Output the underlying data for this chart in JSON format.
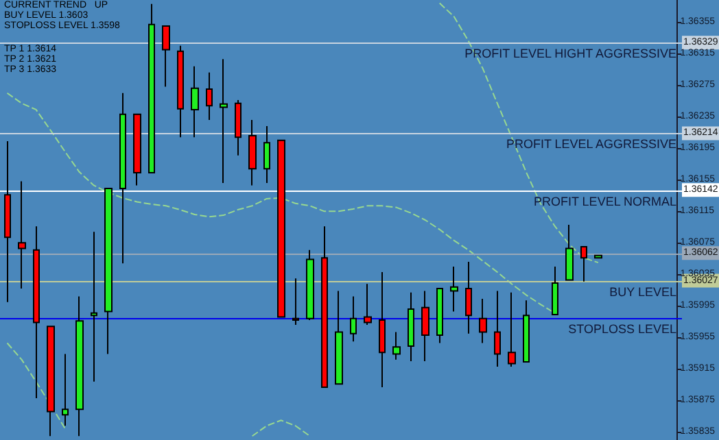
{
  "chart_data": {
    "type": "candlestick",
    "categories": [
      null,
      null,
      null,
      null,
      null,
      null,
      null,
      null,
      null,
      null,
      null,
      null,
      null,
      null,
      null,
      null,
      null,
      null,
      null,
      null,
      null,
      null,
      null,
      null,
      null,
      null,
      null,
      null,
      null,
      null,
      null,
      null,
      null,
      null,
      null,
      null,
      null,
      null,
      null,
      null,
      null,
      null,
      null,
      null,
      null,
      null,
      null
    ],
    "ohlc": [
      [
        1.36136,
        1.36204,
        1.36,
        1.36082
      ],
      [
        1.36075,
        1.36153,
        1.36017,
        1.36068
      ],
      [
        1.36066,
        1.36096,
        1.35878,
        1.35974
      ],
      [
        1.35969,
        1.35969,
        1.3583,
        1.35861
      ],
      [
        1.35857,
        1.35934,
        1.35843,
        1.35864
      ],
      [
        1.35864,
        1.36007,
        1.3583,
        1.35976
      ],
      [
        1.35983,
        1.36089,
        1.35899,
        1.35986
      ],
      [
        1.35988,
        1.36144,
        1.35934,
        1.36144
      ],
      [
        1.36144,
        1.36265,
        1.36049,
        1.36238
      ],
      [
        1.36238,
        1.36238,
        1.36148,
        1.36164
      ],
      [
        1.36164,
        1.36378,
        1.36164,
        1.36352
      ],
      [
        1.3635,
        1.3635,
        1.36273,
        1.3632
      ],
      [
        1.36318,
        1.36325,
        1.36209,
        1.36245
      ],
      [
        1.36244,
        1.36299,
        1.36209,
        1.36271
      ],
      [
        1.3627,
        1.36291,
        1.36231,
        1.36249
      ],
      [
        1.36247,
        1.36308,
        1.36151,
        1.36251
      ],
      [
        1.36252,
        1.36256,
        1.36186,
        1.36209
      ],
      [
        1.36211,
        1.36231,
        1.36148,
        1.36169
      ],
      [
        1.36169,
        1.36223,
        1.36151,
        1.36202
      ],
      [
        1.36205,
        1.36205,
        1.35981,
        1.35981
      ],
      [
        1.35979,
        1.3603,
        1.35971,
        1.35977
      ],
      [
        1.35979,
        1.36066,
        1.35977,
        1.36054
      ],
      [
        1.36056,
        1.36096,
        1.35892,
        1.35892
      ],
      [
        1.35896,
        1.36014,
        1.35896,
        1.35962
      ],
      [
        1.3596,
        1.36007,
        1.3595,
        1.35979
      ],
      [
        1.35981,
        1.36023,
        1.35971,
        1.35974
      ],
      [
        1.35977,
        1.36038,
        1.35892,
        1.35936
      ],
      [
        1.35934,
        1.35962,
        1.35927,
        1.35943
      ],
      [
        1.35944,
        1.36012,
        1.35925,
        1.35991
      ],
      [
        1.35993,
        1.36014,
        1.35925,
        1.35958
      ],
      [
        1.35958,
        1.36017,
        1.35948,
        1.36017
      ],
      [
        1.36014,
        1.36045,
        1.35988,
        1.36019
      ],
      [
        1.36017,
        1.36051,
        1.3596,
        1.35983
      ],
      [
        1.35979,
        1.36004,
        1.35948,
        1.35962
      ],
      [
        1.35962,
        1.36014,
        1.35918,
        1.35934
      ],
      [
        1.35936,
        1.36012,
        1.35918,
        1.35922
      ],
      [
        1.35924,
        1.36002,
        1.35924,
        1.35983
      ],
      null,
      [
        1.35984,
        1.36045,
        1.35984,
        1.36024
      ],
      [
        1.36028,
        1.36098,
        1.36028,
        1.36068
      ],
      [
        1.3607,
        1.3607,
        1.36026,
        1.36056
      ],
      [
        1.36056,
        1.36059,
        1.36056,
        1.36059
      ],
      null,
      null,
      null,
      null,
      null
    ],
    "colors": [
      "#ff0000",
      "#ff0000",
      "#ff0000",
      "#ff0000",
      "#22ee22",
      "#22ee22",
      "#22ee22",
      "#22ee22",
      "#22ee22",
      "#ff0000",
      "#22ee22",
      "#ff0000",
      "#ff0000",
      "#22ee22",
      "#ff0000",
      "#22ee22",
      "#ff0000",
      "#ff0000",
      "#22ee22",
      "#ff0000",
      "#ff0000",
      "#22ee22",
      "#ff0000",
      "#22ee22",
      "#22ee22",
      "#ff0000",
      "#ff0000",
      "#22ee22",
      "#22ee22",
      "#ff0000",
      "#22ee22",
      "#22ee22",
      "#ff0000",
      "#ff0000",
      "#ff0000",
      "#ff0000",
      "#22ee22",
      null,
      "#22ee22",
      "#22ee22",
      "#ff0000",
      "#22ee22",
      null,
      null,
      null,
      null,
      null
    ],
    "series": [
      {
        "type": "line",
        "color": "#98d890",
        "values": [
          1.36265,
          1.36252,
          1.36244,
          1.36218,
          1.36191,
          1.36165,
          1.36148,
          1.36139,
          1.36132,
          1.36127,
          1.36124,
          1.36122,
          1.36117,
          1.36111,
          1.36108,
          1.3611,
          1.36117,
          1.36122,
          1.36131,
          1.36132,
          1.36125,
          1.36122,
          1.36115,
          1.36115,
          1.36118,
          1.36122,
          1.36122,
          1.3612,
          1.36113,
          1.36104,
          1.36092,
          1.36078,
          1.36066,
          1.36052,
          1.36038,
          1.36023,
          1.36009,
          1.35997,
          1.35986,
          null,
          null,
          null,
          null,
          null,
          null,
          null,
          null
        ]
      },
      {
        "type": "line",
        "color": "#98d890",
        "values": [
          null,
          null,
          null,
          null,
          null,
          null,
          null,
          null,
          null,
          null,
          null,
          null,
          null,
          null,
          null,
          null,
          null,
          null,
          null,
          null,
          null,
          null,
          null,
          null,
          null,
          null,
          null,
          null,
          null,
          null,
          1.36379,
          1.36362,
          1.36331,
          1.36296,
          1.36252,
          1.36209,
          1.36165,
          1.36125,
          1.36096,
          1.36073,
          1.36056,
          1.3605,
          null,
          null,
          null,
          null,
          null
        ]
      },
      {
        "type": "line",
        "color": "#98d890",
        "values": [
          1.35948,
          1.35927,
          1.35899,
          1.3587,
          1.3584,
          null,
          null,
          null,
          null,
          null,
          null,
          null,
          null,
          null,
          null,
          null,
          null,
          1.3583,
          1.35843,
          1.3585,
          1.35843,
          1.3583,
          null,
          null,
          null,
          null,
          null,
          null,
          null,
          null,
          null,
          null,
          null,
          null,
          null,
          null,
          null,
          null,
          null,
          null,
          null,
          null,
          null,
          null,
          null,
          null,
          null
        ]
      }
    ],
    "line_style": "dashed",
    "ylim": [
      1.35825,
      1.36383
    ],
    "yticks": [
      1.35835,
      1.35875,
      1.35915,
      1.35955,
      1.35995,
      1.36035,
      1.36075,
      1.36115,
      1.36155,
      1.36195,
      1.36235,
      1.36275,
      1.36315,
      1.36355
    ],
    "tick_labels": "y",
    "grid": false,
    "ref_lines": [
      {
        "axis": "y",
        "value": 1.36329,
        "label": "PROFIT LEVEL HIGHT AGGRESSIVE",
        "color": "#c8d4e0"
      },
      {
        "axis": "y",
        "value": 1.36214,
        "label": "PROFIT LEVEL AGGRESSIVE",
        "color": "#c8d4e0"
      },
      {
        "axis": "y",
        "value": 1.36142,
        "label": "PROFIT LEVEL NORMAL",
        "color": "#ffffff"
      },
      {
        "axis": "y",
        "value": 1.36062,
        "label": null,
        "color": "#9aa8b8"
      },
      {
        "axis": "y",
        "value": 1.36027,
        "label": "BUY LEVEL",
        "color": "#c0cc98"
      },
      {
        "axis": "y",
        "value": 1.3598,
        "label": "STOPLOSS LEVEL",
        "color": "#0000ee"
      }
    ],
    "annotations": [
      "CURRENT TREND   UP",
      "BUY LEVEL 1.3603",
      "STOPLOSS LEVEL 1.3598",
      "TP 1 1.3614",
      "TP 2 1.3621",
      "TP 3 1.3633",
      {
        "text": "1.36329",
        "y": 1.36329
      },
      {
        "text": "1.36214",
        "y": 1.36214
      },
      {
        "text": "1.36142",
        "y": 1.36142
      },
      {
        "text": "1.36062",
        "y": 1.36062
      },
      {
        "text": "1.36027",
        "y": 1.36027
      }
    ]
  }
}
